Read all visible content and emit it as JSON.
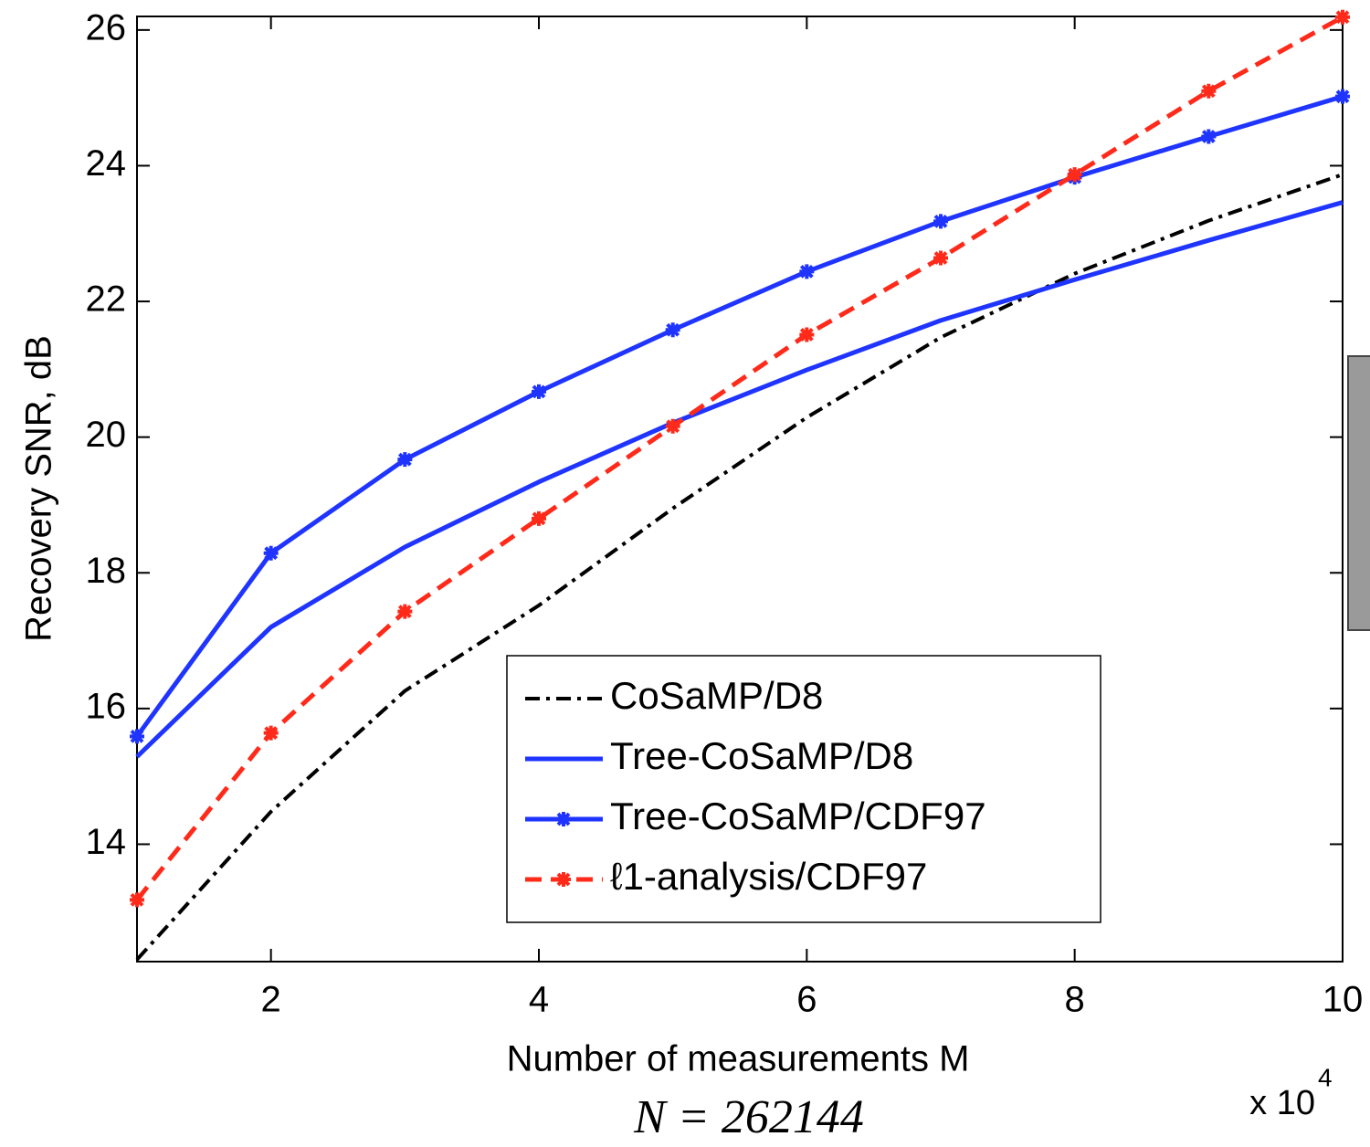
{
  "chart_data": {
    "type": "line",
    "y_label": "Recovery SNR, dB",
    "x_label": "Number of measurements M",
    "x_multiplier": "x 10",
    "x_multiplier_exponent": "4",
    "caption": "N = 262144",
    "x": [
      1,
      2,
      3,
      4,
      5,
      6,
      7,
      8,
      9,
      10
    ],
    "xlim": [
      1,
      10
    ],
    "xticks": [
      2,
      4,
      6,
      8,
      10
    ],
    "ylim": [
      12.27,
      26.2
    ],
    "yticks": [
      14,
      16,
      18,
      20,
      22,
      24,
      26
    ],
    "grid": false,
    "legend": "lower right",
    "series": [
      {
        "name": "CoSaMP/D8",
        "color": "#000000",
        "dash": "dashdot",
        "marker": null,
        "values": [
          12.3,
          14.48,
          16.26,
          17.52,
          18.95,
          20.29,
          21.47,
          22.41,
          23.19,
          23.87
        ]
      },
      {
        "name": "Tree-CoSaMP/D8",
        "color": "#1f35ff",
        "dash": "solid",
        "marker": null,
        "values": [
          15.29,
          17.2,
          18.38,
          19.34,
          20.21,
          20.99,
          21.72,
          22.32,
          22.9,
          23.46
        ]
      },
      {
        "name": "Tree-CoSaMP/CDF97",
        "color": "#1f35ff",
        "dash": "solid",
        "marker": "star",
        "values": [
          15.59,
          18.29,
          19.67,
          20.67,
          21.58,
          22.44,
          23.18,
          23.83,
          24.43,
          25.02
        ]
      },
      {
        "name": "ℓ1-analysis/CDF97",
        "color": "#ff2a1a",
        "dash": "dashed",
        "marker": "star",
        "values": [
          13.18,
          15.64,
          17.43,
          18.8,
          20.16,
          21.51,
          22.64,
          23.87,
          25.1,
          26.19
        ]
      }
    ]
  }
}
